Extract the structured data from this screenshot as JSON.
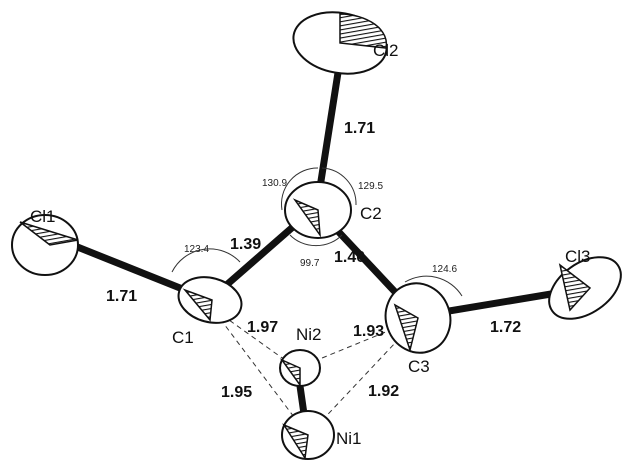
{
  "atoms": [
    {
      "label": "Cl1"
    },
    {
      "label": "Cl2"
    },
    {
      "label": "Cl3"
    },
    {
      "label": "C1"
    },
    {
      "label": "C2"
    },
    {
      "label": "C3"
    },
    {
      "label": "Ni1"
    },
    {
      "label": "Ni2"
    }
  ],
  "bonds": [
    {
      "label": "1.71"
    },
    {
      "label": "1.39"
    },
    {
      "label": "1.40"
    },
    {
      "label": "1.71"
    },
    {
      "label": "1.72"
    },
    {
      "label": "1.97"
    },
    {
      "label": "1.93"
    },
    {
      "label": "1.95"
    },
    {
      "label": "1.92"
    }
  ],
  "angles": [
    {
      "label": "130.9"
    },
    {
      "label": "129.5"
    },
    {
      "label": "99.7"
    },
    {
      "label": "123.4"
    },
    {
      "label": "124.6"
    }
  ]
}
